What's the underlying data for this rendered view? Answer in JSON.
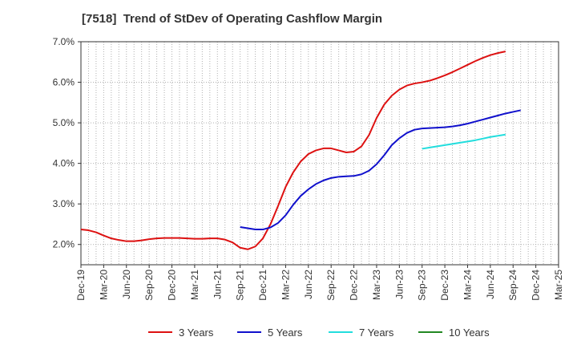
{
  "chart_data": {
    "type": "line",
    "title": "[7518]  Trend of StDev of Operating Cashflow Margin",
    "xlabel": "",
    "ylabel": "",
    "ylim": [
      1.5,
      7.0
    ],
    "yticks": [
      "2.0%",
      "3.0%",
      "4.0%",
      "5.0%",
      "6.0%",
      "7.0%"
    ],
    "ytick_values": [
      2.0,
      3.0,
      4.0,
      5.0,
      6.0,
      7.0
    ],
    "xticks": [
      "Dec-19",
      "Mar-20",
      "Jun-20",
      "Sep-20",
      "Dec-20",
      "Mar-21",
      "Jun-21",
      "Sep-21",
      "Dec-21",
      "Mar-22",
      "Jun-22",
      "Sep-22",
      "Dec-22",
      "Mar-23",
      "Jun-23",
      "Sep-23",
      "Dec-23",
      "Mar-24",
      "Jun-24",
      "Sep-24",
      "Dec-24",
      "Mar-25"
    ],
    "grid": true,
    "legend_position": "bottom",
    "series": [
      {
        "name": "3 Years",
        "color": "#dd1111",
        "start_month": 0,
        "values": [
          2.37,
          2.35,
          2.3,
          2.22,
          2.15,
          2.11,
          2.08,
          2.08,
          2.1,
          2.13,
          2.15,
          2.16,
          2.16,
          2.16,
          2.15,
          2.14,
          2.14,
          2.15,
          2.15,
          2.12,
          2.05,
          1.92,
          1.88,
          1.95,
          2.15,
          2.5,
          2.95,
          3.42,
          3.78,
          4.05,
          4.23,
          4.32,
          4.37,
          4.37,
          4.32,
          4.27,
          4.29,
          4.42,
          4.7,
          5.12,
          5.45,
          5.67,
          5.82,
          5.92,
          5.97,
          6.0,
          6.04,
          6.1,
          6.17,
          6.25,
          6.34,
          6.43,
          6.52,
          6.6,
          6.67,
          6.72,
          6.76
        ]
      },
      {
        "name": "5 Years",
        "color": "#1010cc",
        "start_month": 21,
        "values": [
          2.43,
          2.4,
          2.37,
          2.37,
          2.42,
          2.53,
          2.72,
          2.98,
          3.2,
          3.36,
          3.49,
          3.58,
          3.64,
          3.67,
          3.68,
          3.69,
          3.73,
          3.82,
          3.98,
          4.2,
          4.45,
          4.62,
          4.75,
          4.83,
          4.86,
          4.87,
          4.88,
          4.89,
          4.91,
          4.94,
          4.98,
          5.03,
          5.08,
          5.13,
          5.18,
          5.23,
          5.27,
          5.31
        ]
      },
      {
        "name": "7 Years",
        "color": "#22dddd",
        "start_month": 45,
        "values": [
          4.36,
          4.39,
          4.42,
          4.45,
          4.48,
          4.51,
          4.54,
          4.57,
          4.61,
          4.65,
          4.68,
          4.71
        ]
      },
      {
        "name": "10 Years",
        "color": "#228822",
        "start_month": 0,
        "values": []
      }
    ]
  }
}
